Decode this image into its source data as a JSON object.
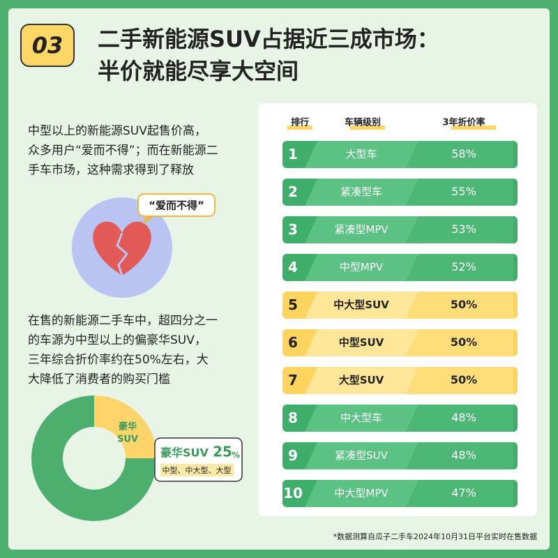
{
  "header": {
    "badge": "03",
    "title_lines": [
      "二手新能源SUV占据近三成市场：",
      "半价就能尽享大空间"
    ]
  },
  "intro_lines": [
    "中型以上的新能源SUV起售价高，",
    "众多用户“爱而不得”；而在新能源二",
    "手车市场，这种需求得到了释放"
  ],
  "bubble": "“爱而不得”",
  "body_lines": [
    "在售的新能源二手车中，超四分之一",
    "的车源为中型以上的偏豪华SUV，",
    "三年综合折价率约在50%左右，大",
    "大降低了消费者的购买门槛"
  ],
  "donut": {
    "segment_label_lines": [
      "豪华",
      "SUV"
    ],
    "label": "豪华SUV",
    "value": 25,
    "unit": "%",
    "note": "中型、中大型、大型",
    "color": "#ffd56b",
    "rest_color": "#4caf6e"
  },
  "table": {
    "headers": [
      "排行",
      "车辆级别",
      "3年折价率"
    ],
    "rows": [
      {
        "rank": "1",
        "name": "大型车",
        "rate": "58%",
        "color": "#3fae6a"
      },
      {
        "rank": "2",
        "name": "紧凑型车",
        "rate": "55%",
        "color": "#3fae6a"
      },
      {
        "rank": "3",
        "name": "紧凑型MPV",
        "rate": "53%",
        "color": "#3fae6a"
      },
      {
        "rank": "4",
        "name": "中型MPV",
        "rate": "52%",
        "color": "#3fae6a"
      },
      {
        "rank": "5",
        "name": "中大型SUV",
        "rate": "50%",
        "color": "#ffd45e"
      },
      {
        "rank": "6",
        "name": "中型SUV",
        "rate": "50%",
        "color": "#ffd45e"
      },
      {
        "rank": "7",
        "name": "大型SUV",
        "rate": "50%",
        "color": "#ffd45e"
      },
      {
        "rank": "8",
        "name": "中大型车",
        "rate": "48%",
        "color": "#3fae6a"
      },
      {
        "rank": "9",
        "name": "紧凑型SUV",
        "rate": "48%",
        "color": "#3fae6a"
      },
      {
        "rank": "10",
        "name": "中大型MPV",
        "rate": "47%",
        "color": "#3fae6a"
      }
    ]
  },
  "footnote": "*数据测算自瓜子二手车2024年10月31日平台实时在售数据"
}
